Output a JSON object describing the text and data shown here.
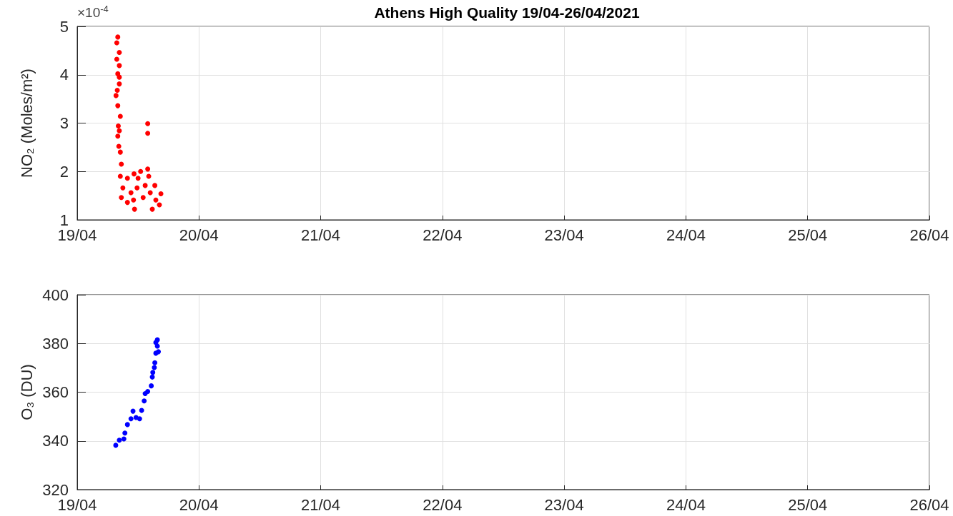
{
  "chart_data": [
    {
      "type": "scatter",
      "title": "Athens High Quality 19/04-26/04/2021",
      "ylabel": "NO₂ (Moles/m²)",
      "annotations": [
        "×10$^{-4}$"
      ],
      "marker": "circle",
      "grid": true,
      "x": [
        "2021-04-19T08:00",
        "2021-04-19T07:48",
        "2021-04-19T08:18",
        "2021-04-19T07:48",
        "2021-04-19T08:18",
        "2021-04-19T08:00",
        "2021-04-19T08:18",
        "2021-04-19T08:18",
        "2021-04-19T07:54",
        "2021-04-19T07:39",
        "2021-04-19T08:00",
        "2021-04-19T08:30",
        "2021-04-19T08:06",
        "2021-04-19T08:18",
        "2021-04-19T08:00",
        "2021-04-19T08:12",
        "2021-04-19T08:30",
        "2021-04-19T08:42",
        "2021-04-19T13:54",
        "2021-04-19T13:54",
        "2021-04-19T08:30",
        "2021-04-19T09:00",
        "2021-04-19T08:42",
        "2021-04-19T09:54",
        "2021-04-19T09:54",
        "2021-04-19T10:36",
        "2021-04-19T11:12",
        "2021-04-19T11:18",
        "2021-04-19T11:48",
        "2021-04-19T12:30",
        "2021-04-19T13:00",
        "2021-04-19T13:24",
        "2021-04-19T13:54",
        "2021-04-19T14:06",
        "2021-04-19T14:24",
        "2021-04-19T14:48",
        "2021-04-19T15:18",
        "2021-04-19T15:30",
        "2021-04-19T16:12",
        "2021-04-19T16:30",
        "2021-04-19T11:06",
        "2021-04-19T12:00"
      ],
      "series": [
        {
          "color": "#ff0000",
          "values": [
            4.78,
            4.66,
            4.46,
            4.32,
            4.19,
            4.02,
            3.95,
            3.81,
            3.68,
            3.57,
            3.36,
            3.14,
            2.94,
            2.84,
            2.73,
            2.52,
            2.4,
            2.15,
            2.99,
            2.79,
            1.9,
            1.66,
            1.46,
            1.86,
            1.36,
            1.56,
            1.95,
            1.22,
            1.66,
            2.0,
            1.46,
            1.71,
            2.05,
            1.9,
            1.56,
            1.22,
            1.71,
            1.41,
            1.31,
            1.54,
            1.41,
            1.86
          ]
        }
      ],
      "xlim": [
        "2021-04-19",
        "2021-04-26"
      ],
      "xticks": [
        {
          "value": "2021-04-19",
          "label": "19/04"
        },
        {
          "value": "2021-04-20",
          "label": "20/04"
        },
        {
          "value": "2021-04-21",
          "label": "21/04"
        },
        {
          "value": "2021-04-22",
          "label": "22/04"
        },
        {
          "value": "2021-04-23",
          "label": "23/04"
        },
        {
          "value": "2021-04-24",
          "label": "24/04"
        },
        {
          "value": "2021-04-25",
          "label": "25/04"
        },
        {
          "value": "2021-04-26",
          "label": "26/04"
        }
      ],
      "ylim": [
        1,
        5
      ],
      "yticks": [
        1,
        2,
        3,
        4,
        5
      ]
    },
    {
      "type": "scatter",
      "ylabel": "O₃ (DU)",
      "marker": "circle",
      "grid": true,
      "x": [
        "2021-04-19T07:36",
        "2021-04-19T08:18",
        "2021-04-19T09:12",
        "2021-04-19T09:24",
        "2021-04-19T09:54",
        "2021-04-19T10:36",
        "2021-04-19T11:00",
        "2021-04-19T11:36",
        "2021-04-19T12:18",
        "2021-04-19T12:42",
        "2021-04-19T13:12",
        "2021-04-19T13:24",
        "2021-04-19T13:54",
        "2021-04-19T14:36",
        "2021-04-19T14:48",
        "2021-04-19T14:54",
        "2021-04-19T15:12",
        "2021-04-19T15:18",
        "2021-04-19T15:30",
        "2021-04-19T16:00",
        "2021-04-19T15:48",
        "2021-04-19T15:30",
        "2021-04-19T15:48"
      ],
      "series": [
        {
          "color": "#0000ff",
          "values": [
            338.2,
            340.3,
            340.8,
            343.2,
            346.7,
            349.1,
            352.2,
            349.6,
            349.1,
            352.5,
            356.4,
            359.4,
            360.3,
            362.6,
            366.2,
            368.1,
            370.1,
            372.1,
            376.0,
            376.6,
            378.9,
            380.4,
            381.5
          ]
        }
      ],
      "xlim": [
        "2021-04-19",
        "2021-04-26"
      ],
      "xticks": [
        {
          "value": "2021-04-19",
          "label": "19/04"
        },
        {
          "value": "2021-04-20",
          "label": "20/04"
        },
        {
          "value": "2021-04-21",
          "label": "21/04"
        },
        {
          "value": "2021-04-22",
          "label": "22/04"
        },
        {
          "value": "2021-04-23",
          "label": "23/04"
        },
        {
          "value": "2021-04-24",
          "label": "24/04"
        },
        {
          "value": "2021-04-25",
          "label": "25/04"
        },
        {
          "value": "2021-04-26",
          "label": "26/04"
        }
      ],
      "ylim": [
        320,
        400
      ],
      "yticks": [
        320,
        340,
        360,
        380,
        400
      ]
    }
  ]
}
